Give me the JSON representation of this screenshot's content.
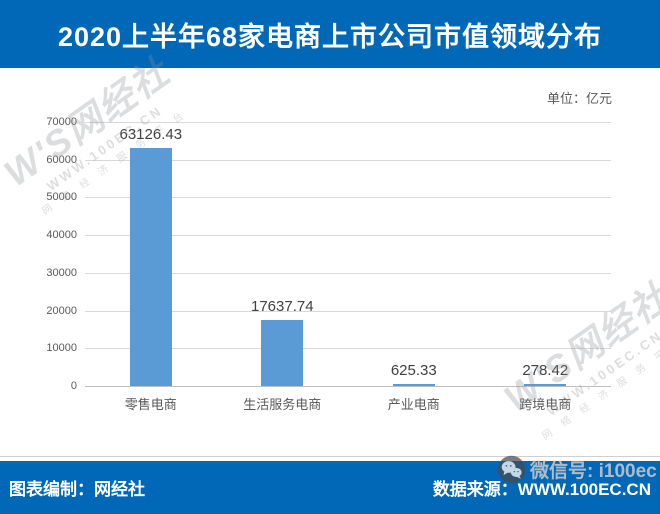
{
  "header": {
    "title": "2020上半年68家电商上市公司市值领域分布"
  },
  "chart_data": {
    "type": "bar",
    "title": "2020上半年68家电商上市公司市值领域分布",
    "unit_label": "单位：亿元",
    "categories": [
      "零售电商",
      "生活服务电商",
      "产业电商",
      "跨境电商"
    ],
    "values": [
      63126.43,
      17637.74,
      625.33,
      278.42
    ],
    "value_labels": [
      "63126.43",
      "17637.74",
      "625.33",
      "278.42"
    ],
    "xlabel": "",
    "ylabel": "",
    "ylim": [
      0,
      70000
    ],
    "yticks": [
      0,
      10000,
      20000,
      30000,
      40000,
      50000,
      60000,
      70000
    ],
    "grid": true,
    "legend_position": "none",
    "bar_color": "#5B9BD5"
  },
  "footer": {
    "left": "图表编制：网经社",
    "right": "数据来源：WWW.100EC.CN"
  },
  "watermark": {
    "logo_text": "W'S网经社",
    "site_text": "WWW.100EC.CN",
    "tagline_text": "网 络 经 济 服 务 平 台",
    "wechat_label": "微信号: i100ec"
  },
  "colors": {
    "banner_blue": "#0068B7",
    "bar_blue": "#5B9BD5",
    "gridline_gray": "#D9D9D9",
    "axis_text_gray": "#595959",
    "value_text_dark": "#404040"
  }
}
